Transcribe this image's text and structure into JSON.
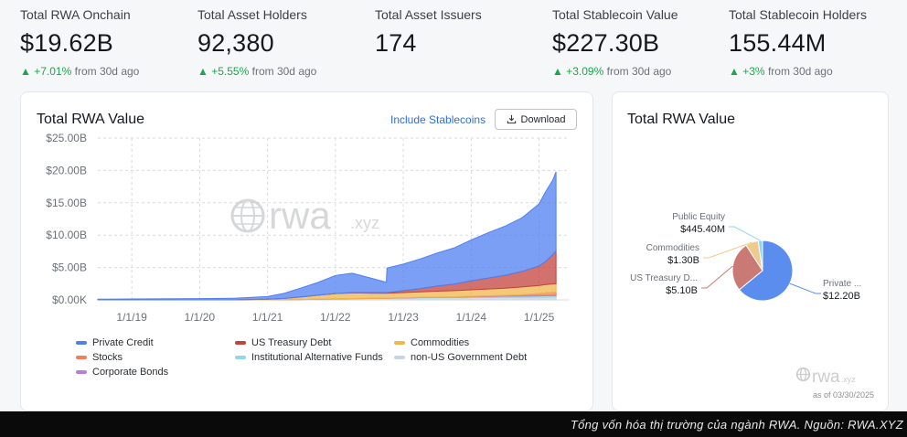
{
  "stats": [
    {
      "label": "Total RWA Onchain",
      "value": "$19.62B",
      "change": "+7.01%",
      "period": "from 30d ago"
    },
    {
      "label": "Total Asset Holders",
      "value": "92,380",
      "change": "+5.55%",
      "period": "from 30d ago"
    },
    {
      "label": "Total Asset Issuers",
      "value": "174",
      "change": "",
      "period": ""
    },
    {
      "label": "Total Stablecoin Value",
      "value": "$227.30B",
      "change": "+3.09%",
      "period": "from 30d ago"
    },
    {
      "label": "Total Stablecoin Holders",
      "value": "155.44M",
      "change": "+3%",
      "period": "from 30d ago"
    }
  ],
  "left_card": {
    "title": "Total RWA Value",
    "include_stablecoins": "Include Stablecoins",
    "download": "Download",
    "watermark": "rwa",
    "watermark_suffix": ".xyz"
  },
  "right_card": {
    "title": "Total RWA Value",
    "brand": "rwa",
    "brand_suffix": ".xyz",
    "as_of": "as of 03/30/2025"
  },
  "caption": "Tổng vốn hóa thị trường của ngành RWA. Nguồn: RWA.XYZ",
  "chart_data": [
    {
      "type": "area",
      "title": "Total RWA Value",
      "x_ticks": [
        "1/1/19",
        "1/1/20",
        "1/1/21",
        "1/1/22",
        "1/1/23",
        "1/1/24",
        "1/1/25"
      ],
      "y_ticks": [
        "$0.00K",
        "$5.00B",
        "$10.00B",
        "$15.00B",
        "$20.00B",
        "$25.00B"
      ],
      "ylim": [
        0,
        25
      ],
      "x": [
        2018.5,
        2019,
        2020,
        2020.5,
        2021,
        2021.25,
        2021.5,
        2021.75,
        2022,
        2022.25,
        2022.5,
        2022.75,
        2022.76,
        2023,
        2023.25,
        2023.5,
        2023.75,
        2024,
        2024.25,
        2024.5,
        2024.75,
        2025,
        2025.1,
        2025.2,
        2025.25
      ],
      "grid": true,
      "stacked": true,
      "series": [
        {
          "name": "non-US Government Debt",
          "color": "#c8d4e6",
          "values": [
            0,
            0,
            0,
            0,
            0.01,
            0.02,
            0.05,
            0.1,
            0.15,
            0.2,
            0.22,
            0.25,
            0.25,
            0.28,
            0.3,
            0.32,
            0.33,
            0.35,
            0.36,
            0.38,
            0.39,
            0.4,
            0.41,
            0.42,
            0.43
          ]
        },
        {
          "name": "Institutional Alternative Funds",
          "color": "#8fd7ec",
          "values": [
            0,
            0,
            0,
            0,
            0,
            0,
            0,
            0,
            0,
            0,
            0,
            0,
            0,
            0.02,
            0.05,
            0.08,
            0.1,
            0.12,
            0.15,
            0.18,
            0.2,
            0.22,
            0.22,
            0.23,
            0.23
          ]
        },
        {
          "name": "Corporate Bonds",
          "color": "#b77de0",
          "values": [
            0,
            0,
            0,
            0,
            0,
            0,
            0,
            0,
            0,
            0,
            0,
            0,
            0,
            0,
            0,
            0,
            0,
            0.02,
            0.03,
            0.04,
            0.05,
            0.06,
            0.06,
            0.07,
            0.07
          ]
        },
        {
          "name": "Stocks",
          "color": "#f47e5c",
          "values": [
            0,
            0,
            0,
            0,
            0,
            0.01,
            0.01,
            0.02,
            0.02,
            0.02,
            0.02,
            0.02,
            0.02,
            0.03,
            0.03,
            0.04,
            0.05,
            0.06,
            0.08,
            0.1,
            0.15,
            0.3,
            0.4,
            0.44,
            0.45
          ]
        },
        {
          "name": "Commodities",
          "color": "#f0b64c",
          "values": [
            0,
            0,
            0,
            0,
            0.1,
            0.2,
            0.4,
            0.6,
            0.8,
            0.85,
            0.8,
            0.75,
            0.75,
            0.8,
            0.85,
            0.9,
            0.95,
            1.0,
            1.05,
            1.1,
            1.2,
            1.25,
            1.28,
            1.3,
            1.3
          ]
        },
        {
          "name": "US Treasury Debt",
          "color": "#c4423c",
          "values": [
            0,
            0,
            0,
            0,
            0,
            0,
            0,
            0,
            0,
            0.05,
            0.08,
            0.1,
            0.1,
            0.3,
            0.5,
            0.8,
            1.0,
            1.4,
            1.7,
            2.0,
            2.4,
            3.0,
            3.6,
            4.5,
            5.1
          ]
        },
        {
          "name": "Private Credit",
          "color": "#4f7ff0",
          "values": [
            0.1,
            0.15,
            0.2,
            0.25,
            0.4,
            0.8,
            1.4,
            2.0,
            2.8,
            3.0,
            2.3,
            1.6,
            3.8,
            4.1,
            4.6,
            5.1,
            5.6,
            6.3,
            7.0,
            7.6,
            8.3,
            9.6,
            10.8,
            11.5,
            12.2
          ]
        }
      ]
    },
    {
      "type": "pie",
      "title": "Total RWA Value",
      "slices": [
        {
          "label": "Private ...",
          "value_label": "$12.20B",
          "value": 12.2,
          "color": "#5b8def"
        },
        {
          "label": "US Treasury D...",
          "value_label": "$5.10B",
          "value": 5.1,
          "color": "#c97a75"
        },
        {
          "label": "Commodities",
          "value_label": "$1.30B",
          "value": 1.3,
          "color": "#f2c98c"
        },
        {
          "label": "Public Equity",
          "value_label": "$445.40M",
          "value": 0.4454,
          "color": "#8fd7ec"
        }
      ]
    }
  ]
}
